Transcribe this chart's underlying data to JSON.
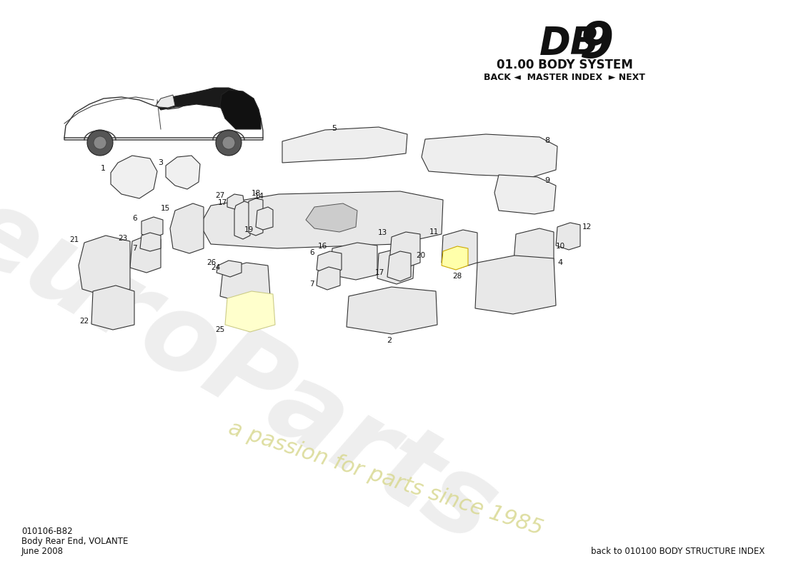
{
  "title_system": "01.00 BODY SYSTEM",
  "nav_text": "BACK ◄  MASTER INDEX  ► NEXT",
  "part_code": "010106-B82",
  "part_name": "Body Rear End, VOLANTE",
  "part_date": "June 2008",
  "footer_right": "back to 010100 BODY STRUCTURE INDEX",
  "watermark_text1": "euroParts",
  "watermark_text2": "a passion for parts since 1985",
  "background_color": "#ffffff",
  "line_color": "#333333",
  "text_color": "#111111",
  "watermark_color1": "#d0d0d0",
  "watermark_color2": "#d8d890"
}
